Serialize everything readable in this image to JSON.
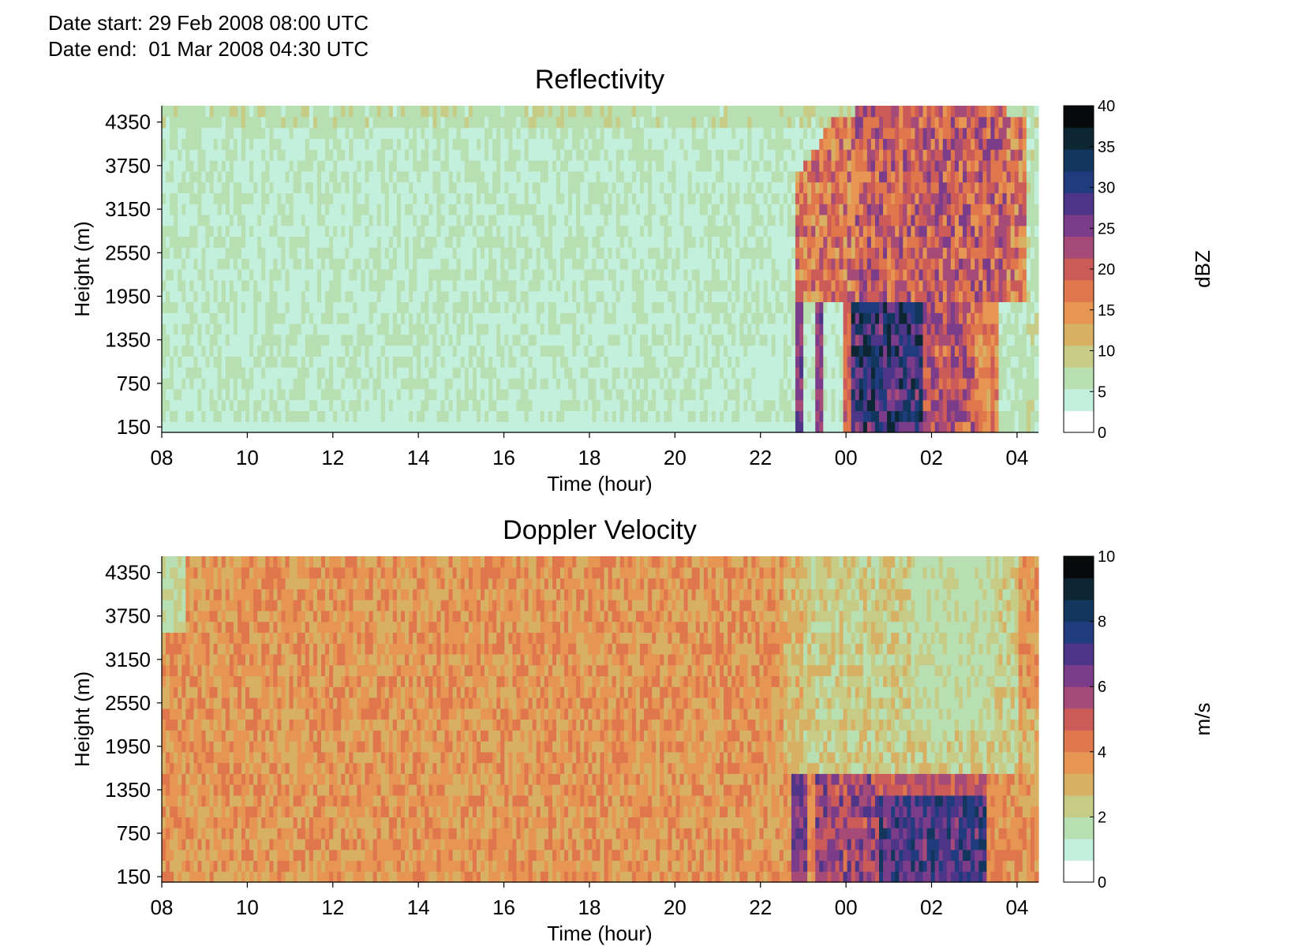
{
  "header": {
    "date_start": "Date start: 29 Feb 2008 08:00 UTC",
    "date_end": "Date end:  01 Mar 2008 04:30 UTC"
  },
  "chart_data": [
    {
      "type": "heatmap",
      "title": "Reflectivity",
      "xlabel": "Time (hour)",
      "ylabel": "Height (m)",
      "x_ticks": [
        "08",
        "10",
        "12",
        "14",
        "16",
        "18",
        "20",
        "22",
        "00",
        "02",
        "04"
      ],
      "x_range_hours_from_start": [
        0,
        20.5
      ],
      "y_ticks": [
        150,
        750,
        1350,
        1950,
        2550,
        3150,
        3750,
        4350
      ],
      "ylim": [
        75,
        4575
      ],
      "colorbar": {
        "label": "dBZ",
        "ticks": [
          0,
          5,
          10,
          15,
          20,
          25,
          30,
          35,
          40
        ],
        "range": [
          0,
          40
        ]
      },
      "grid": false,
      "description_regions": [
        {
          "time_hours": [
            0,
            14.5
          ],
          "height_m": [
            150,
            4350
          ],
          "value_range": [
            1,
            7
          ]
        },
        {
          "time_hours": [
            15.5,
            19.5
          ],
          "height_m": [
            1700,
            4500
          ],
          "value_range": [
            10,
            20
          ]
        },
        {
          "time_hours": [
            16.5,
            17.5
          ],
          "height_m": [
            150,
            1700
          ],
          "value_range": [
            25,
            40
          ]
        }
      ]
    },
    {
      "type": "heatmap",
      "title": "Doppler Velocity",
      "xlabel": "Time (hour)",
      "ylabel": "Height (m)",
      "x_ticks": [
        "08",
        "10",
        "12",
        "14",
        "16",
        "18",
        "20",
        "22",
        "00",
        "02",
        "04"
      ],
      "x_range_hours_from_start": [
        0,
        20.5
      ],
      "y_ticks": [
        150,
        750,
        1350,
        1950,
        2550,
        3150,
        3750,
        4350
      ],
      "ylim": [
        75,
        4575
      ],
      "colorbar": {
        "label": "m/s",
        "ticks": [
          0,
          2,
          4,
          6,
          8,
          10
        ],
        "range": [
          0,
          10
        ]
      },
      "grid": false,
      "description_regions": [
        {
          "time_hours": [
            0,
            14.5
          ],
          "height_m": [
            150,
            4350
          ],
          "value_range": [
            2.5,
            4.5
          ]
        },
        {
          "time_hours": [
            14.5,
            20.5
          ],
          "height_m": [
            1500,
            4500
          ],
          "value_range": [
            1,
            2.5
          ]
        },
        {
          "time_hours": [
            15.5,
            19.5
          ],
          "height_m": [
            150,
            1400
          ],
          "value_range": [
            5,
            9
          ]
        }
      ]
    }
  ],
  "colors": {
    "cmap": [
      "#ffffff",
      "#c2f0dc",
      "#b8dfb2",
      "#c6cc86",
      "#d8b064",
      "#e69552",
      "#e0764c",
      "#cb5a58",
      "#a64a78",
      "#7b3c89",
      "#4d3688",
      "#203c7e",
      "#12365e",
      "#0d2634",
      "#080b0c"
    ]
  }
}
